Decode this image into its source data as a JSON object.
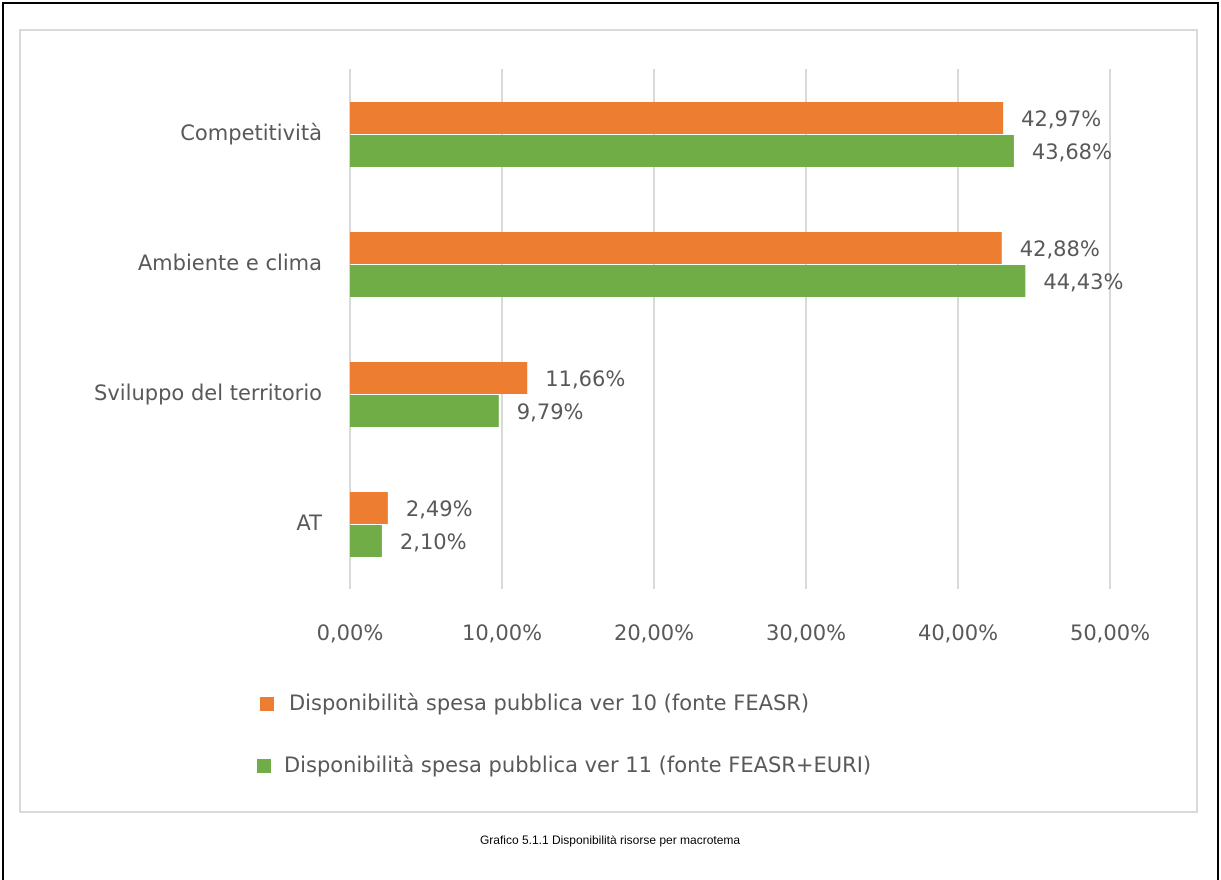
{
  "chart_data": {
    "type": "barh",
    "caption": "Grafico 5.1.1 Disponibilità risorse per macrotema",
    "categories": [
      "Competitività",
      "Ambiente e clima",
      "Sviluppo del territorio",
      "AT"
    ],
    "series": [
      {
        "name": "Disponibilità spesa pubblica ver 10 (fonte FEASR)",
        "color": "#ED7D31",
        "values": [
          42.97,
          42.88,
          11.66,
          2.49
        ],
        "value_labels": [
          "42,97%",
          "42,88%",
          "11,66%",
          "2,49%"
        ]
      },
      {
        "name": "Disponibilità spesa pubblica ver 11 (fonte FEASR+EURI)",
        "color": "#70AD47",
        "values": [
          43.68,
          44.43,
          9.79,
          2.1
        ],
        "value_labels": [
          "43,68%",
          "44,43%",
          "9,79%",
          "2,10%"
        ]
      }
    ],
    "xlim": [
      0,
      50
    ],
    "xticks": [
      {
        "value": 0,
        "label": "0,00%"
      },
      {
        "value": 10,
        "label": "10,00%"
      },
      {
        "value": 20,
        "label": "20,00%"
      },
      {
        "value": 30,
        "label": "30,00%"
      },
      {
        "value": 40,
        "label": "40,00%"
      },
      {
        "value": 50,
        "label": "50,00%"
      }
    ],
    "grid": true,
    "legend": "bottom"
  }
}
